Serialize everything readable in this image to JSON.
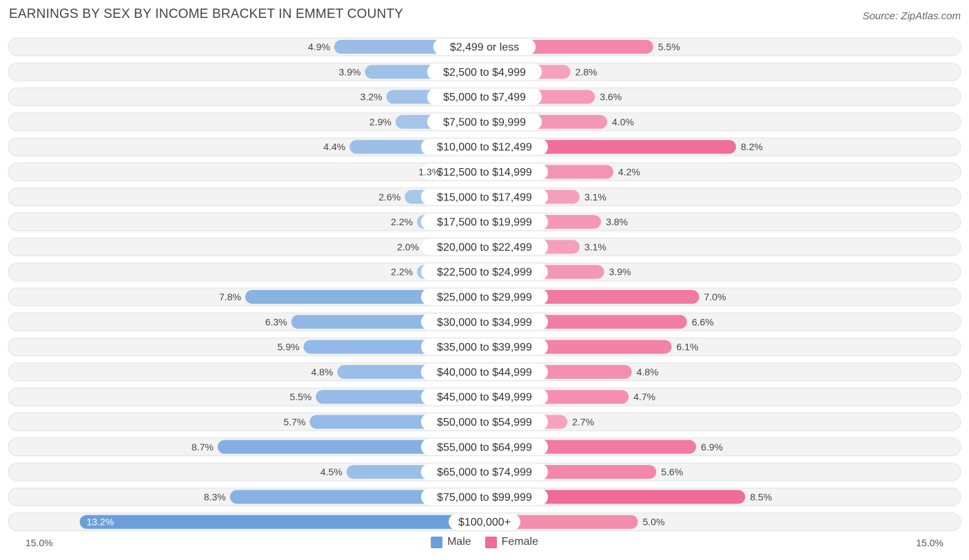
{
  "title": "EARNINGS BY SEX BY INCOME BRACKET IN EMMET COUNTY",
  "source": "Source: ZipAtlas.com",
  "colors": {
    "male": "#6a9fdc",
    "female": "#f06b96",
    "row_bg": "#f2f2f2"
  },
  "chart_data": {
    "type": "bar",
    "orientation": "horizontal-diverging",
    "categories": [
      "$2,499 or less",
      "$2,500 to $4,999",
      "$5,000 to $7,499",
      "$7,500 to $9,999",
      "$10,000 to $12,499",
      "$12,500 to $14,999",
      "$15,000 to $17,499",
      "$17,500 to $19,999",
      "$20,000 to $22,499",
      "$22,500 to $24,999",
      "$25,000 to $29,999",
      "$30,000 to $34,999",
      "$35,000 to $39,999",
      "$40,000 to $44,999",
      "$45,000 to $49,999",
      "$50,000 to $54,999",
      "$55,000 to $64,999",
      "$65,000 to $74,999",
      "$75,000 to $99,999",
      "$100,000+"
    ],
    "series": [
      {
        "name": "Male",
        "values": [
          4.9,
          3.9,
          3.2,
          2.9,
          4.4,
          1.3,
          2.6,
          2.2,
          2.0,
          2.2,
          7.8,
          6.3,
          5.9,
          4.8,
          5.5,
          5.7,
          8.7,
          4.5,
          8.3,
          13.2
        ],
        "labels": [
          "4.9%",
          "3.9%",
          "3.2%",
          "2.9%",
          "4.4%",
          "1.3%",
          "2.6%",
          "2.2%",
          "2.0%",
          "2.2%",
          "7.8%",
          "6.3%",
          "5.9%",
          "4.8%",
          "5.5%",
          "5.7%",
          "8.7%",
          "4.5%",
          "8.3%",
          "13.2%"
        ]
      },
      {
        "name": "Female",
        "values": [
          5.5,
          2.8,
          3.6,
          4.0,
          8.2,
          4.2,
          3.1,
          3.8,
          3.1,
          3.9,
          7.0,
          6.6,
          6.1,
          4.8,
          4.7,
          2.7,
          6.9,
          5.6,
          8.5,
          5.0
        ],
        "labels": [
          "5.5%",
          "2.8%",
          "3.6%",
          "4.0%",
          "8.2%",
          "4.2%",
          "3.1%",
          "3.8%",
          "3.1%",
          "3.9%",
          "7.0%",
          "6.6%",
          "6.1%",
          "4.8%",
          "4.7%",
          "2.7%",
          "6.9%",
          "5.6%",
          "8.5%",
          "5.0%"
        ]
      }
    ],
    "xlim": [
      -15.0,
      15.0
    ],
    "axis_labels": {
      "left": "15.0%",
      "right": "15.0%"
    },
    "legend": [
      "Male",
      "Female"
    ],
    "legend_position": "bottom-center"
  }
}
